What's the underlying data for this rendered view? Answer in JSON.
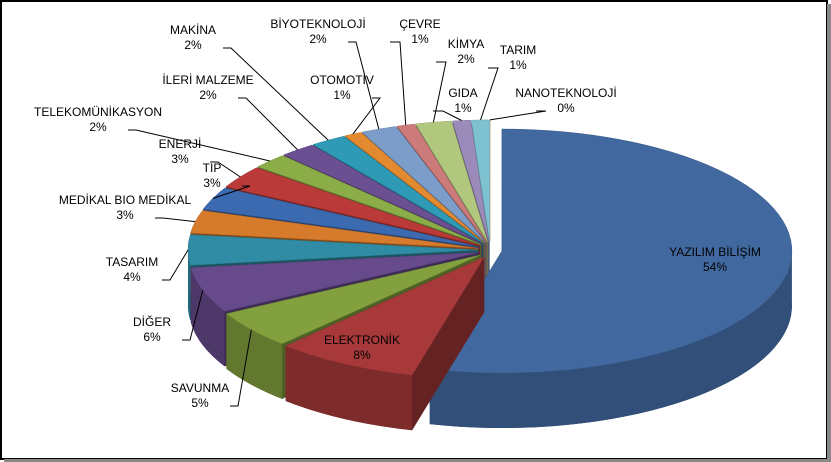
{
  "chart_data": {
    "type": "pie",
    "categories": [
      "YAZILIM BİLİŞİM",
      "ELEKTRONİK",
      "SAVUNMA",
      "DİĞER",
      "TASARIM",
      "MEDİKAL BIO MEDİKAL",
      "TIP",
      "ENERJİ",
      "TELEKOMÜNİKASYON",
      "İLERİ MALZEME",
      "MAKİNA",
      "OTOMOTİV",
      "BİYOTEKNOLOJİ",
      "ÇEVRE",
      "KİMYA",
      "GIDA",
      "TARIM",
      "NANOTEKNOLOJİ"
    ],
    "values": [
      54,
      8,
      5,
      6,
      4,
      3,
      3,
      3,
      2,
      2,
      2,
      1,
      2,
      1,
      2,
      1,
      1,
      0
    ],
    "value_labels": [
      "54%",
      "8%",
      "5%",
      "6%",
      "4%",
      "3%",
      "3%",
      "3%",
      "2%",
      "2%",
      "2%",
      "1%",
      "2%",
      "1%",
      "2%",
      "1%",
      "1%",
      "0%"
    ],
    "colors": [
      "#4169a0",
      "#a8393a",
      "#83a03e",
      "#664a8c",
      "#2f8ca4",
      "#d67a2c",
      "#3c6ab0",
      "#b93a38",
      "#8bad48",
      "#6b4f93",
      "#2e9ab6",
      "#e38a31",
      "#7c9cc9",
      "#cd7a7a",
      "#b1c77e",
      "#9b8bbb",
      "#7ec2d2",
      "#f2b283"
    ]
  }
}
